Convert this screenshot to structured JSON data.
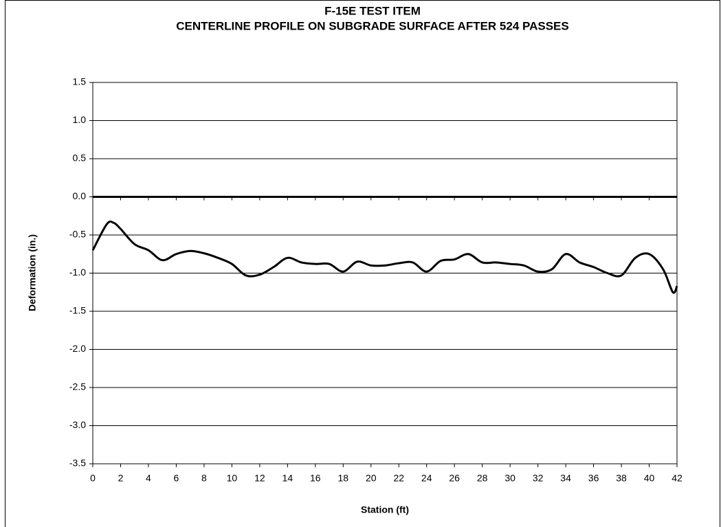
{
  "chart_data": {
    "type": "line",
    "title": [
      "F-15E TEST ITEM",
      "CENTERLINE PROFILE ON SUBGRADE SURFACE AFTER 524 PASSES"
    ],
    "x_label": "Station (ft)",
    "y_label": "Deformation (in.)",
    "x": [
      0,
      1,
      1.5,
      2,
      3,
      4,
      5,
      6,
      7,
      8,
      9,
      10,
      11,
      12,
      13,
      14,
      15,
      16,
      17,
      18,
      19,
      20,
      21,
      22,
      23,
      24,
      25,
      26,
      27,
      28,
      29,
      30,
      31,
      32,
      33,
      34,
      35,
      36,
      37,
      38,
      39,
      40,
      41,
      41.7,
      42
    ],
    "series": [
      {
        "name": "Centerline profile",
        "color": "#000000",
        "values": [
          -0.7,
          -0.36,
          -0.34,
          -0.42,
          -0.62,
          -0.7,
          -0.83,
          -0.75,
          -0.71,
          -0.74,
          -0.8,
          -0.88,
          -1.03,
          -1.02,
          -0.92,
          -0.8,
          -0.86,
          -0.88,
          -0.88,
          -0.98,
          -0.85,
          -0.9,
          -0.9,
          -0.87,
          -0.86,
          -0.98,
          -0.84,
          -0.82,
          -0.75,
          -0.86,
          -0.86,
          -0.88,
          -0.9,
          -0.98,
          -0.95,
          -0.75,
          -0.86,
          -0.92,
          -1.0,
          -1.03,
          -0.8,
          -0.75,
          -0.95,
          -1.25,
          -1.17
        ]
      }
    ],
    "xlim": [
      0,
      42
    ],
    "ylim": [
      -3.5,
      1.5
    ],
    "xticks": [
      0,
      2,
      4,
      6,
      8,
      10,
      12,
      14,
      16,
      18,
      20,
      22,
      24,
      26,
      28,
      30,
      32,
      34,
      36,
      38,
      40,
      42
    ],
    "yticks": [
      1.5,
      {
        "value": 1,
        "label": "1.0"
      },
      0.5,
      {
        "value": 0,
        "label": "0.0"
      },
      -0.5,
      {
        "value": -1,
        "label": "-1.0"
      },
      -1.5,
      {
        "value": -2,
        "label": "-2.0"
      },
      -2.5,
      {
        "value": -3,
        "label": "-3.0"
      },
      -3.5
    ],
    "grid": true
  }
}
